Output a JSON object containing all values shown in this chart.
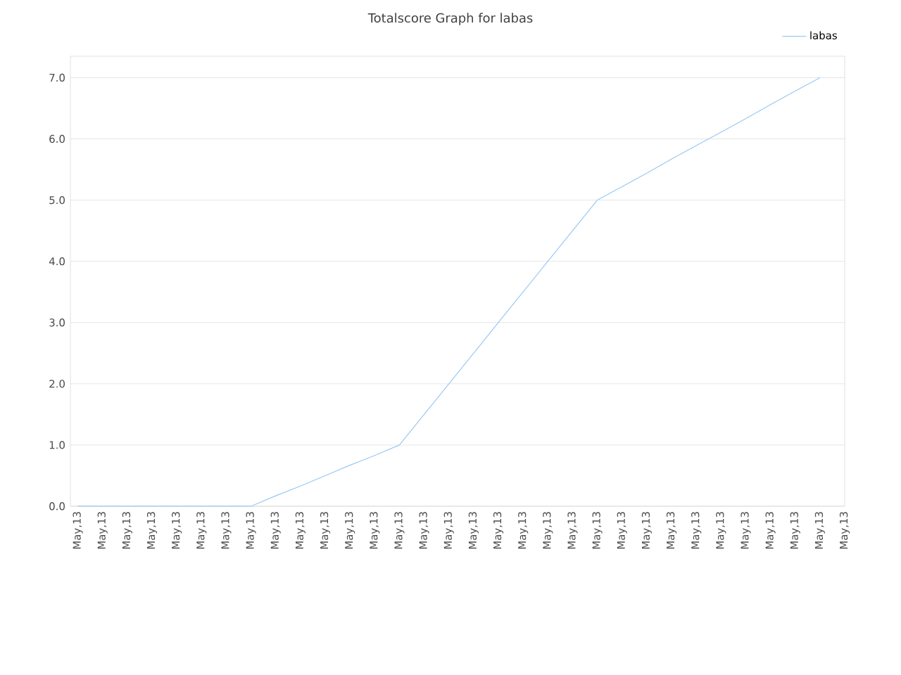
{
  "chart_data": {
    "type": "line",
    "title": "Totalscore Graph for labas",
    "categories": [
      "May,13",
      "May,13",
      "May,13",
      "May,13",
      "May,13",
      "May,13",
      "May,13",
      "May,13",
      "May,13",
      "May,13",
      "May,13",
      "May,13",
      "May,13",
      "May,13",
      "May,13",
      "May,13",
      "May,13",
      "May,13",
      "May,13",
      "May,13",
      "May,13",
      "May,13",
      "May,13",
      "May,13",
      "May,13",
      "May,13",
      "May,13",
      "May,13",
      "May,13",
      "May,13",
      "May,13",
      "May,13"
    ],
    "series": [
      {
        "name": "labas",
        "color": "#99c9f5",
        "values": [
          0,
          0,
          0,
          0,
          0,
          0,
          0,
          0,
          0.17,
          0.33,
          0.5,
          0.67,
          0.83,
          1.0,
          1.5,
          2.0,
          2.5,
          3.0,
          3.5,
          4.0,
          4.5,
          5.0,
          5.22,
          5.44,
          5.67,
          5.89,
          6.11,
          6.33,
          6.56,
          6.78,
          7.0,
          null
        ]
      }
    ],
    "ylim": [
      0,
      7.35
    ],
    "yticks": [
      {
        "value": 0,
        "label": "0.0"
      },
      {
        "value": 1,
        "label": "1.0"
      },
      {
        "value": 2,
        "label": "2.0"
      },
      {
        "value": 3,
        "label": "3.0"
      },
      {
        "value": 4,
        "label": "4.0"
      },
      {
        "value": 5,
        "label": "5.0"
      },
      {
        "value": 6,
        "label": "6.0"
      },
      {
        "value": 7,
        "label": "7.0"
      }
    ],
    "grid": "y",
    "legend": "top right",
    "marker": "none",
    "line_style": "solid"
  }
}
